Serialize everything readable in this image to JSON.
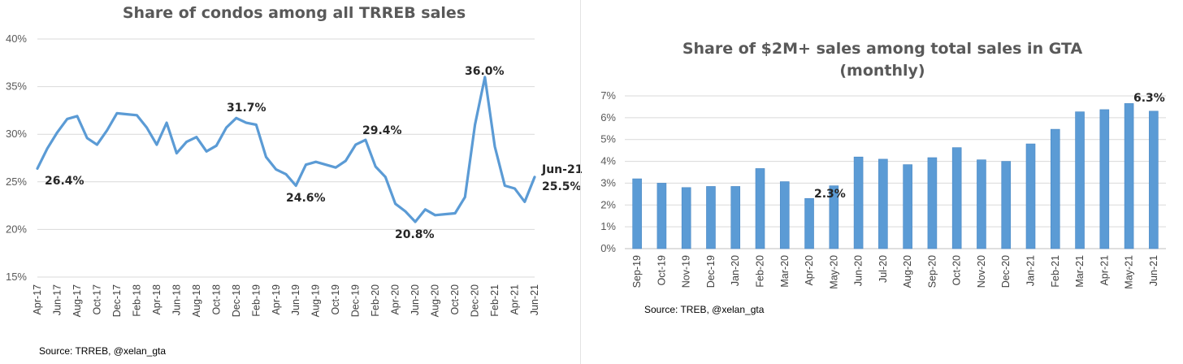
{
  "charts": [
    {
      "type": "line",
      "title": "Share of condos among all TRREB sales",
      "source": "Source: TRREB, @xelan_gta",
      "y_ticks": [
        "40%",
        "35%",
        "30%",
        "25%",
        "20%",
        "15%"
      ],
      "x_tick_labels": [
        "Apr-17",
        "Jun-17",
        "Aug-17",
        "Oct-17",
        "Dec-17",
        "Feb-18",
        "Apr-18",
        "Jun-18",
        "Aug-18",
        "Oct-18",
        "Dec-18",
        "Feb-19",
        "Apr-19",
        "Jun-19",
        "Aug-19",
        "Oct-19",
        "Dec-19",
        "Feb-20",
        "Apr-20",
        "Jun-20",
        "Aug-20",
        "Oct-20",
        "Dec-20",
        "Feb-21",
        "Apr-21",
        "Jun-21"
      ],
      "annotations": [
        "26.4%",
        "31.7%",
        "24.6%",
        "29.4%",
        "20.8%",
        "36.0%",
        "Jun-21",
        "25.5%"
      ]
    },
    {
      "type": "bar",
      "title_line1": "Share of $2M+ sales among total sales in GTA",
      "title_line2": "(monthly)",
      "source": "Source: TREB, @xelan_gta",
      "y_ticks": [
        "7%",
        "6%",
        "5%",
        "4%",
        "3%",
        "2%",
        "1%",
        "0%"
      ],
      "annotations": [
        "2.3%",
        "6.3%"
      ]
    }
  ],
  "chart_data": [
    {
      "type": "line",
      "title": "Share of condos among all TRREB sales",
      "ylabel": "",
      "xlabel": "",
      "ylim": [
        15,
        40
      ],
      "y_unit": "%",
      "grid": true,
      "color": "#5b9bd5",
      "x": [
        "Apr-17",
        "May-17",
        "Jun-17",
        "Jul-17",
        "Aug-17",
        "Sep-17",
        "Oct-17",
        "Nov-17",
        "Dec-17",
        "Jan-18",
        "Feb-18",
        "Mar-18",
        "Apr-18",
        "May-18",
        "Jun-18",
        "Jul-18",
        "Aug-18",
        "Sep-18",
        "Oct-18",
        "Nov-18",
        "Dec-18",
        "Jan-19",
        "Feb-19",
        "Mar-19",
        "Apr-19",
        "May-19",
        "Jun-19",
        "Jul-19",
        "Aug-19",
        "Sep-19",
        "Oct-19",
        "Nov-19",
        "Dec-19",
        "Jan-20",
        "Feb-20",
        "Mar-20",
        "Apr-20",
        "May-20",
        "Jun-20",
        "Jul-20",
        "Aug-20",
        "Sep-20",
        "Oct-20",
        "Nov-20",
        "Dec-20",
        "Jan-21",
        "Feb-21",
        "Mar-21",
        "Apr-21",
        "May-21",
        "Jun-21"
      ],
      "values": [
        26.4,
        28.5,
        30.2,
        31.6,
        31.9,
        29.6,
        28.9,
        30.4,
        32.2,
        32.1,
        32.0,
        30.7,
        28.9,
        31.2,
        28.0,
        29.2,
        29.7,
        28.2,
        28.8,
        30.7,
        31.7,
        31.2,
        31.0,
        27.6,
        26.3,
        25.8,
        24.6,
        26.8,
        27.1,
        26.8,
        26.5,
        27.2,
        28.9,
        29.4,
        26.6,
        25.5,
        22.7,
        21.9,
        20.8,
        22.1,
        21.5,
        21.6,
        21.7,
        23.4,
        31.0,
        36.0,
        28.7,
        24.6,
        24.3,
        22.9,
        25.5
      ]
    },
    {
      "type": "bar",
      "title": "Share of $2M+ sales among total sales in GTA (monthly)",
      "ylabel": "",
      "xlabel": "",
      "ylim": [
        0,
        7
      ],
      "y_unit": "%",
      "grid": true,
      "color": "#5b9bd5",
      "categories": [
        "Sep-19",
        "Oct-19",
        "Nov-19",
        "Dec-19",
        "Jan-20",
        "Feb-20",
        "Mar-20",
        "Apr-20",
        "May-20",
        "Jun-20",
        "Jul-20",
        "Aug-20",
        "Sep-20",
        "Oct-20",
        "Nov-20",
        "Dec-20",
        "Jan-21",
        "Feb-21",
        "Mar-21",
        "Apr-21",
        "May-21",
        "Jun-21"
      ],
      "values": [
        3.2,
        3.0,
        2.8,
        2.85,
        2.85,
        3.67,
        3.07,
        2.3,
        2.88,
        4.2,
        4.1,
        3.85,
        4.17,
        4.63,
        4.07,
        4.0,
        4.8,
        5.47,
        6.27,
        6.37,
        6.65,
        6.3
      ]
    }
  ]
}
